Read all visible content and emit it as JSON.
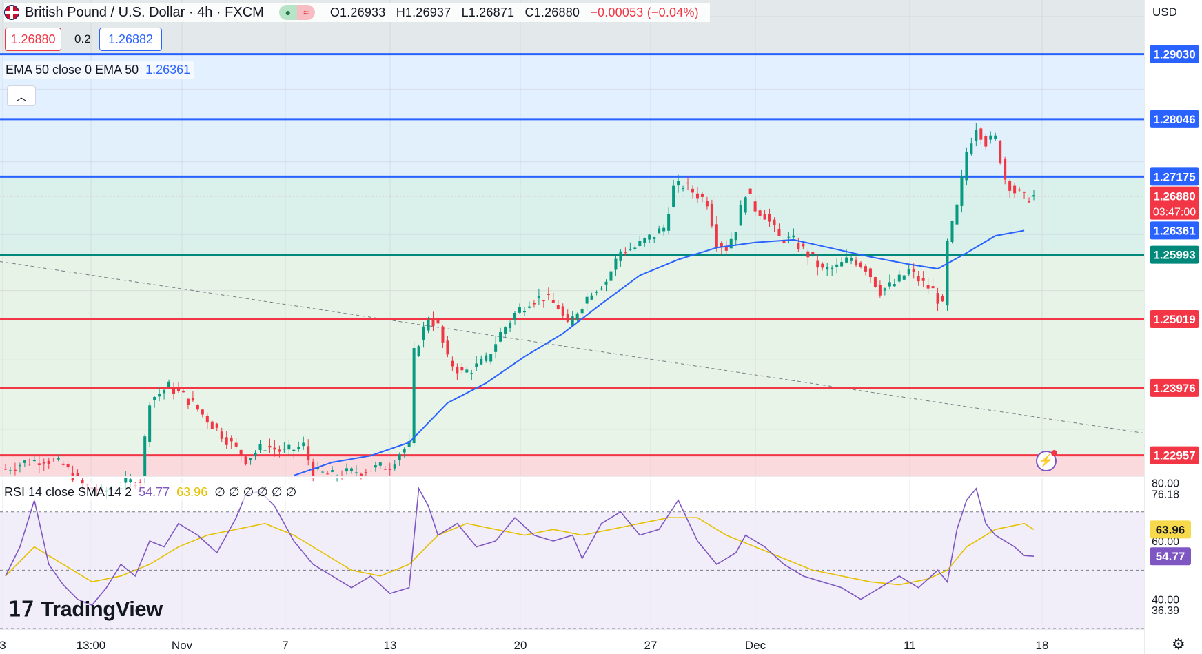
{
  "header": {
    "symbol": "British Pound / U.S. Dollar",
    "interval": "4h",
    "exchange": "FXCM",
    "open": "O1.26933",
    "high": "H1.26937",
    "low": "L1.26871",
    "close": "C1.26880",
    "change": "−0.00053 (−0.04%)"
  },
  "trade": {
    "sell": "1.26880",
    "spread": "0.2",
    "buy": "1.26882"
  },
  "ema": {
    "label": "EMA 50 close 0 EMA 50",
    "value": "1.26361",
    "color": "#2962ff"
  },
  "rsi": {
    "label": "RSI 14 close SMA 14 2",
    "rsi_value": "54.77",
    "sma_value": "63.96",
    "extras": "∅ ∅ ∅ ∅ ∅ ∅",
    "rsi_color": "#7e57c2",
    "sma_color": "#e5c100"
  },
  "currency": "USD",
  "logo": "TradingView",
  "colors": {
    "up": "#089981",
    "down": "#f23645",
    "resistance": "#2962ff",
    "support": "#f23645",
    "pivot": "#00897b"
  },
  "chart_data": {
    "type": "candlestick",
    "title": "British Pound / U.S. Dollar · 4h · FXCM",
    "ylim": [
      1.2265,
      1.2985
    ],
    "x_ticks": [
      "3",
      "13:00",
      "Nov",
      "7",
      "13",
      "20",
      "27",
      "Dec",
      "11",
      "18"
    ],
    "price_levels": [
      {
        "value": 1.2903,
        "label": "1.29030",
        "kind": "resistance"
      },
      {
        "value": 1.28046,
        "label": "1.28046",
        "kind": "resistance"
      },
      {
        "value": 1.27175,
        "label": "1.27175",
        "kind": "resistance"
      },
      {
        "value": 1.25993,
        "label": "1.25993",
        "kind": "pivot"
      },
      {
        "value": 1.25019,
        "label": "1.25019",
        "kind": "support"
      },
      {
        "value": 1.23976,
        "label": "1.23976",
        "kind": "support"
      },
      {
        "value": 1.22957,
        "label": "1.22957",
        "kind": "support"
      }
    ],
    "last_price": {
      "value": 1.2688,
      "label": "1.26880",
      "countdown": "03:47:00"
    },
    "ema_last": {
      "value": 1.26361,
      "label": "1.26361"
    },
    "price_path": [
      [
        0,
        1.2275
      ],
      [
        4,
        1.2285
      ],
      [
        8,
        1.229
      ],
      [
        12,
        1.228
      ],
      [
        16,
        1.225
      ],
      [
        20,
        1.224
      ],
      [
        24,
        1.225
      ],
      [
        28,
        1.226
      ],
      [
        30,
        1.238
      ],
      [
        34,
        1.24
      ],
      [
        38,
        1.238
      ],
      [
        42,
        1.235
      ],
      [
        46,
        1.232
      ],
      [
        50,
        1.229
      ],
      [
        54,
        1.231
      ],
      [
        58,
        1.23
      ],
      [
        62,
        1.231
      ],
      [
        64,
        1.227
      ],
      [
        68,
        1.2265
      ],
      [
        72,
        1.227
      ],
      [
        76,
        1.2275
      ],
      [
        80,
        1.228
      ],
      [
        82,
        1.23
      ],
      [
        84,
        1.231
      ],
      [
        85,
        1.245
      ],
      [
        88,
        1.2505
      ],
      [
        90,
        1.249
      ],
      [
        92,
        1.244
      ],
      [
        95,
        1.242
      ],
      [
        98,
        1.243
      ],
      [
        100,
        1.244
      ],
      [
        103,
        1.248
      ],
      [
        106,
        1.251
      ],
      [
        109,
        1.253
      ],
      [
        112,
        1.2535
      ],
      [
        115,
        1.252
      ],
      [
        117,
        1.249
      ],
      [
        119,
        1.2515
      ],
      [
        122,
        1.2545
      ],
      [
        125,
        1.256
      ],
      [
        128,
        1.2605
      ],
      [
        131,
        1.261
      ],
      [
        134,
        1.2625
      ],
      [
        137,
        1.264
      ],
      [
        139,
        1.27
      ],
      [
        141,
        1.2705
      ],
      [
        144,
        1.269
      ],
      [
        146,
        1.268
      ],
      [
        148,
        1.262
      ],
      [
        150,
        1.261
      ],
      [
        152,
        1.264
      ],
      [
        154,
        1.2695
      ],
      [
        156,
        1.267
      ],
      [
        158,
        1.266
      ],
      [
        161,
        1.2625
      ],
      [
        164,
        1.262
      ],
      [
        167,
        1.26
      ],
      [
        170,
        1.2575
      ],
      [
        173,
        1.258
      ],
      [
        176,
        1.2595
      ],
      [
        179,
        1.258
      ],
      [
        182,
        1.2545
      ],
      [
        185,
        1.2555
      ],
      [
        188,
        1.2575
      ],
      [
        191,
        1.2555
      ],
      [
        193,
        1.2545
      ],
      [
        195,
        1.252
      ],
      [
        196,
        1.2615
      ],
      [
        198,
        1.267
      ],
      [
        200,
        1.2755
      ],
      [
        202,
        1.2795
      ],
      [
        204,
        1.277
      ],
      [
        206,
        1.2775
      ],
      [
        208,
        1.2715
      ],
      [
        210,
        1.2695
      ],
      [
        212,
        1.2685
      ],
      [
        214,
        1.2688
      ]
    ],
    "ema_path": [
      [
        60,
        1.2265
      ],
      [
        68,
        1.2285
      ],
      [
        76,
        1.2295
      ],
      [
        84,
        1.2315
      ],
      [
        92,
        1.2375
      ],
      [
        100,
        1.2405
      ],
      [
        108,
        1.2445
      ],
      [
        116,
        1.248
      ],
      [
        124,
        1.2525
      ],
      [
        132,
        1.2568
      ],
      [
        140,
        1.2592
      ],
      [
        148,
        1.261
      ],
      [
        156,
        1.2618
      ],
      [
        164,
        1.2622
      ],
      [
        172,
        1.2609
      ],
      [
        180,
        1.2596
      ],
      [
        188,
        1.2585
      ],
      [
        194,
        1.2578
      ],
      [
        200,
        1.2602
      ],
      [
        206,
        1.2628
      ],
      [
        212,
        1.2636
      ]
    ],
    "rsi_ylim": [
      30,
      82
    ],
    "rsi_levels": [
      70,
      50,
      30
    ],
    "rsi_axis_labels": [
      "80.00",
      "76.18",
      "60.00",
      "40.00",
      "36.39"
    ],
    "rsi_series": [
      {
        "name": "RSI 14",
        "values": [
          [
            0,
            48
          ],
          [
            3,
            58
          ],
          [
            6,
            74
          ],
          [
            9,
            52
          ],
          [
            12,
            45
          ],
          [
            15,
            40
          ],
          [
            18,
            38
          ],
          [
            21,
            44
          ],
          [
            24,
            52
          ],
          [
            27,
            48
          ],
          [
            30,
            60
          ],
          [
            33,
            58
          ],
          [
            36,
            66
          ],
          [
            40,
            62
          ],
          [
            44,
            56
          ],
          [
            48,
            68
          ],
          [
            50,
            76
          ],
          [
            53,
            77
          ],
          [
            56,
            72
          ],
          [
            60,
            60
          ],
          [
            64,
            52
          ],
          [
            68,
            48
          ],
          [
            72,
            44
          ],
          [
            76,
            48
          ],
          [
            80,
            42
          ],
          [
            84,
            44
          ],
          [
            86,
            78
          ],
          [
            88,
            72
          ],
          [
            90,
            62
          ],
          [
            94,
            66
          ],
          [
            98,
            58
          ],
          [
            102,
            60
          ],
          [
            106,
            68
          ],
          [
            110,
            62
          ],
          [
            114,
            60
          ],
          [
            118,
            62
          ],
          [
            120,
            54
          ],
          [
            124,
            66
          ],
          [
            128,
            70
          ],
          [
            132,
            62
          ],
          [
            136,
            64
          ],
          [
            140,
            74
          ],
          [
            144,
            60
          ],
          [
            148,
            52
          ],
          [
            152,
            56
          ],
          [
            154,
            62
          ],
          [
            158,
            58
          ],
          [
            162,
            52
          ],
          [
            166,
            48
          ],
          [
            170,
            46
          ],
          [
            174,
            44
          ],
          [
            178,
            40
          ],
          [
            182,
            44
          ],
          [
            186,
            48
          ],
          [
            190,
            44
          ],
          [
            194,
            50
          ],
          [
            196,
            46
          ],
          [
            198,
            64
          ],
          [
            200,
            74
          ],
          [
            202,
            78
          ],
          [
            204,
            66
          ],
          [
            206,
            62
          ],
          [
            208,
            60
          ],
          [
            210,
            58
          ],
          [
            212,
            55
          ],
          [
            214,
            54.77
          ]
        ]
      },
      {
        "name": "SMA 14",
        "values": [
          [
            0,
            48
          ],
          [
            6,
            58
          ],
          [
            12,
            52
          ],
          [
            18,
            46
          ],
          [
            24,
            48
          ],
          [
            30,
            52
          ],
          [
            36,
            58
          ],
          [
            42,
            62
          ],
          [
            48,
            64
          ],
          [
            54,
            66
          ],
          [
            60,
            62
          ],
          [
            66,
            56
          ],
          [
            72,
            50
          ],
          [
            78,
            48
          ],
          [
            84,
            52
          ],
          [
            90,
            62
          ],
          [
            96,
            66
          ],
          [
            102,
            64
          ],
          [
            108,
            62
          ],
          [
            114,
            64
          ],
          [
            120,
            62
          ],
          [
            126,
            64
          ],
          [
            132,
            66
          ],
          [
            138,
            68
          ],
          [
            144,
            68
          ],
          [
            150,
            62
          ],
          [
            156,
            58
          ],
          [
            162,
            54
          ],
          [
            168,
            50
          ],
          [
            174,
            48
          ],
          [
            180,
            46
          ],
          [
            186,
            45
          ],
          [
            192,
            47
          ],
          [
            196,
            50
          ],
          [
            200,
            58
          ],
          [
            206,
            64
          ],
          [
            212,
            66
          ],
          [
            214,
            63.96
          ]
        ]
      }
    ]
  }
}
